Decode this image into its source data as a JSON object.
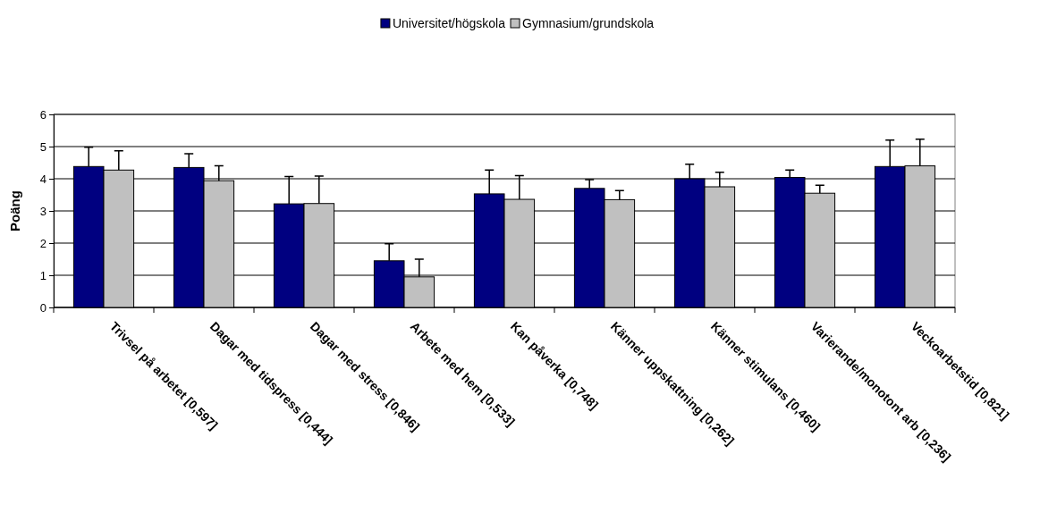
{
  "chart_data": {
    "type": "bar",
    "ylabel": "Poäng",
    "categories": [
      "Trivsel på arbetet [0,597]",
      "Dagar med tidspress [0,444]",
      "Dagar med stress [0,846]",
      "Arbete med hem [0,533]",
      "Kan påverka [0,748]",
      "Känner uppskattning [0,262]",
      "Känner stimulans [0,460]",
      "Varierande/monotont arb [0,236]",
      "Veckoarbetstid [0,821]"
    ],
    "series": [
      {
        "name": "Universitet/högskola",
        "color": "#000080",
        "values": [
          4.38,
          4.35,
          3.22,
          1.45,
          3.53,
          3.7,
          4.0,
          4.04,
          4.38
        ],
        "errors": [
          [
            4.38,
            4.98
          ],
          [
            4.35,
            4.78
          ],
          [
            3.22,
            4.07
          ],
          [
            1.45,
            1.98
          ],
          [
            3.53,
            4.27
          ],
          [
            3.7,
            3.97
          ],
          [
            4.0,
            4.45
          ],
          [
            4.04,
            4.27
          ],
          [
            4.38,
            5.2
          ]
        ]
      },
      {
        "name": "Gymnasium/grundskola",
        "color": "#c0c0c0",
        "values": [
          4.27,
          3.94,
          3.23,
          0.95,
          3.36,
          3.35,
          3.75,
          3.55,
          4.4
        ],
        "errors": [
          [
            4.27,
            4.87
          ],
          [
            3.94,
            4.4
          ],
          [
            3.23,
            4.08
          ],
          [
            0.95,
            1.5
          ],
          [
            3.36,
            4.1
          ],
          [
            3.35,
            3.63
          ],
          [
            3.75,
            4.2
          ],
          [
            3.55,
            3.8
          ],
          [
            4.4,
            5.23
          ]
        ]
      }
    ],
    "ylim": [
      0,
      6
    ],
    "yticks": [
      0,
      1,
      2,
      3,
      4,
      5,
      6
    ],
    "grid": "y",
    "legend": "top"
  }
}
